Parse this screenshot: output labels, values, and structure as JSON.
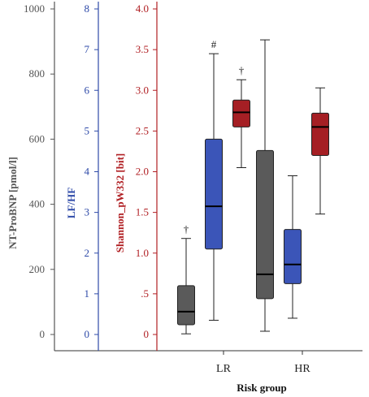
{
  "chart_data": {
    "type": "boxplot",
    "xlabel": "Risk group",
    "categories": [
      "LR",
      "HR"
    ],
    "axes": [
      {
        "id": "ntprobnp",
        "label": "NT-ProBNP [pmol/l]",
        "color": "#555555",
        "ylim": [
          0,
          1000
        ],
        "ticks": [
          0,
          200,
          400,
          600,
          800,
          1000
        ],
        "tick_labels": [
          "0",
          "200",
          "400",
          "600",
          "800",
          "1000"
        ]
      },
      {
        "id": "lfhf",
        "label": "LF/HF",
        "color": "#2e4aa8",
        "ylim": [
          0,
          8
        ],
        "ticks": [
          0,
          1,
          2,
          3,
          4,
          5,
          6,
          7,
          8
        ],
        "tick_labels": [
          "0",
          "1",
          "2",
          "3",
          "4",
          "5",
          "6",
          "7",
          "8"
        ]
      },
      {
        "id": "shannon",
        "label": "Shannon_pW332 [bit]",
        "color": "#b01e22",
        "ylim": [
          0,
          4.0
        ],
        "ticks": [
          0,
          0.5,
          1.0,
          1.5,
          2.0,
          2.5,
          3.0,
          3.5,
          4.0
        ],
        "tick_labels": [
          "0",
          ".5",
          "1.0",
          "1.5",
          "2.0",
          "2.5",
          "3.0",
          "3.5",
          "4.0"
        ]
      }
    ],
    "series": [
      {
        "axis": "ntprobnp",
        "color": "#5a5a5a",
        "boxes": [
          {
            "category": "LR",
            "min": 2,
            "q1": 30,
            "median": 70,
            "q3": 150,
            "max": 295,
            "annotation": "†"
          },
          {
            "category": "HR",
            "min": 10,
            "q1": 110,
            "median": 185,
            "q3": 565,
            "max": 905,
            "annotation": ""
          }
        ]
      },
      {
        "axis": "lfhf",
        "color": "#3b55b8",
        "boxes": [
          {
            "category": "LR",
            "min": 0.35,
            "q1": 2.1,
            "median": 3.15,
            "q3": 4.8,
            "max": 6.9,
            "annotation": "#"
          },
          {
            "category": "HR",
            "min": 0.4,
            "q1": 1.25,
            "median": 1.72,
            "q3": 2.58,
            "max": 3.9,
            "annotation": ""
          }
        ]
      },
      {
        "axis": "shannon",
        "color": "#a51f24",
        "boxes": [
          {
            "category": "LR",
            "min": 2.05,
            "q1": 2.55,
            "median": 2.73,
            "q3": 2.88,
            "max": 3.13,
            "annotation": "†"
          },
          {
            "category": "HR",
            "min": 1.48,
            "q1": 2.2,
            "median": 2.55,
            "q3": 2.72,
            "max": 3.03,
            "annotation": ""
          }
        ]
      }
    ],
    "grid": false,
    "legend": "none"
  }
}
